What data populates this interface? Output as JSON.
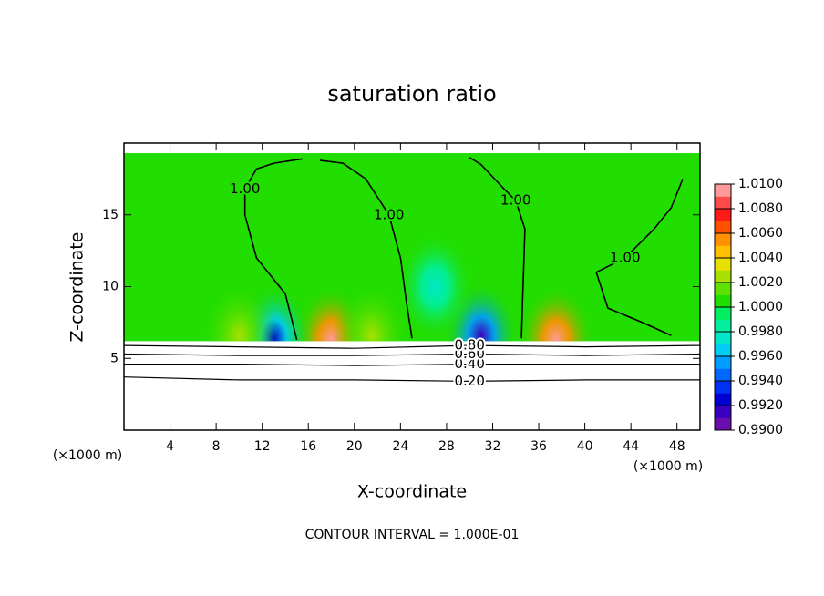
{
  "chart_data": {
    "type": "contour",
    "title": "saturation ratio",
    "x_label": "X-coordinate",
    "y_label": "Z-coordinate",
    "x_unit": "(×1000 m)",
    "footer": "CONTOUR INTERVAL = 1.000E-01",
    "xlim": [
      0,
      50
    ],
    "xticks": [
      4,
      8,
      12,
      16,
      20,
      24,
      28,
      32,
      36,
      40,
      44,
      48
    ],
    "ylim": [
      0,
      20
    ],
    "yticks": [
      5,
      10,
      15
    ],
    "field": {
      "value": 1.0005,
      "z": [
        6.2,
        19.3
      ]
    },
    "hotspots": [
      {
        "x": 18,
        "y": 6.3,
        "value": 1.01
      },
      {
        "x": 37.5,
        "y": 6.3,
        "value": 1.01
      },
      {
        "x": 13,
        "y": 6.4,
        "value": 0.992
      },
      {
        "x": 31,
        "y": 6.6,
        "value": 0.991
      },
      {
        "x": 10,
        "y": 6.6,
        "value": 1.003
      },
      {
        "x": 21.5,
        "y": 6.6,
        "value": 1.003
      },
      {
        "x": 27,
        "y": 10,
        "value": 0.997
      }
    ],
    "contours": [
      {
        "level": 1,
        "label": "1.00",
        "x": [
          15,
          14,
          11.5,
          10.5,
          10.5,
          11.5,
          13,
          15.5
        ],
        "y": [
          6.3,
          9.5,
          12,
          15,
          16.8,
          18.2,
          18.6,
          18.9
        ]
      },
      {
        "level": 1,
        "label": "1.00",
        "x": [
          25,
          24.5,
          24,
          23,
          21,
          19,
          17
        ],
        "y": [
          6.4,
          9,
          12,
          15,
          17.5,
          18.6,
          18.8
        ]
      },
      {
        "level": 1,
        "label": "1.00",
        "x": [
          34.5,
          34.6,
          34.8,
          34,
          33,
          31,
          30
        ],
        "y": [
          6.4,
          9,
          14,
          16,
          16.8,
          18.5,
          19
        ]
      },
      {
        "level": 1,
        "label": "1.00",
        "x": [
          47.5,
          45,
          42,
          41,
          43.5,
          46,
          47.5,
          48.5
        ],
        "y": [
          6.6,
          7.5,
          8.5,
          11,
          12,
          14,
          15.5,
          17.5
        ]
      },
      {
        "level": 0.2,
        "label": "0.20",
        "x": [
          0,
          10,
          20,
          30,
          40,
          50
        ],
        "y": [
          3.7,
          3.5,
          3.5,
          3.4,
          3.5,
          3.5
        ]
      },
      {
        "level": 0.4,
        "label": "0.40",
        "x": [
          0,
          10,
          20,
          30,
          40,
          50
        ],
        "y": [
          4.6,
          4.6,
          4.5,
          4.6,
          4.6,
          4.6
        ]
      },
      {
        "level": 0.6,
        "label": "0.60",
        "x": [
          0,
          10,
          20,
          30,
          40,
          50
        ],
        "y": [
          5.3,
          5.2,
          5.2,
          5.3,
          5.2,
          5.3
        ]
      },
      {
        "level": 0.8,
        "label": "0.80",
        "x": [
          0,
          10,
          20,
          30,
          40,
          50
        ],
        "y": [
          5.9,
          5.8,
          5.7,
          5.9,
          5.8,
          5.9
        ]
      }
    ],
    "colorbar": {
      "ticks": [
        {
          "value": 0.99,
          "label": "0.9900"
        },
        {
          "value": 0.992,
          "label": "0.9920"
        },
        {
          "value": 0.994,
          "label": "0.9940"
        },
        {
          "value": 0.996,
          "label": "0.9960"
        },
        {
          "value": 0.998,
          "label": "0.9980"
        },
        {
          "value": 1.0,
          "label": "1.0000"
        },
        {
          "value": 1.002,
          "label": "1.0020"
        },
        {
          "value": 1.004,
          "label": "1.0040"
        },
        {
          "value": 1.006,
          "label": "1.0060"
        },
        {
          "value": 1.008,
          "label": "1.0080"
        },
        {
          "value": 1.01,
          "label": "1.0100"
        }
      ],
      "colors": [
        "#6a0dad",
        "#3a00c0",
        "#0000d0",
        "#0030f0",
        "#0068ff",
        "#009cff",
        "#00ccf4",
        "#00e8c8",
        "#00f0a0",
        "#00ee60",
        "#22dd00",
        "#60e000",
        "#a8e000",
        "#e8e000",
        "#ffc000",
        "#ff9000",
        "#ff5000",
        "#ff1a1a",
        "#ff4a4a",
        "#ff9a9a"
      ]
    }
  }
}
